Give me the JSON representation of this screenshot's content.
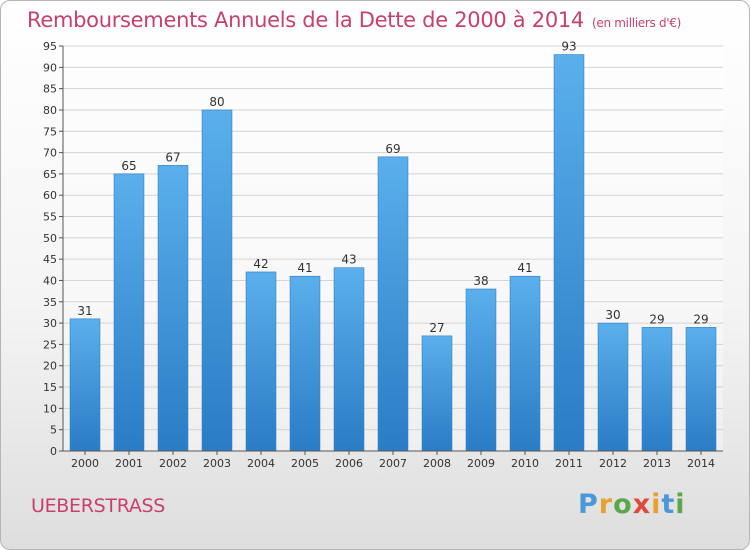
{
  "chart_data": {
    "type": "bar",
    "title": "Remboursements Annuels de la Dette de 2000 à 2014",
    "unit": "(en milliers d'€)",
    "categories": [
      "2000",
      "2001",
      "2002",
      "2003",
      "2004",
      "2005",
      "2006",
      "2007",
      "2008",
      "2009",
      "2010",
      "2011",
      "2012",
      "2013",
      "2014"
    ],
    "values": [
      31,
      65,
      67,
      80,
      42,
      41,
      43,
      69,
      27,
      38,
      41,
      93,
      30,
      29,
      29
    ],
    "ylim": [
      0,
      95
    ],
    "ytick_step": 5,
    "grid": true,
    "bar_color": "#4a9fe0"
  },
  "place": "UEBERSTRASS",
  "logo": {
    "letters": [
      "P",
      "r",
      "o",
      "x",
      "i",
      "t",
      "i"
    ],
    "colors": [
      "#4a98d8",
      "#e8a12c",
      "#5aa84a",
      "#e0493a",
      "#e8a12c",
      "#4a98d8",
      "#5aa84a"
    ]
  }
}
